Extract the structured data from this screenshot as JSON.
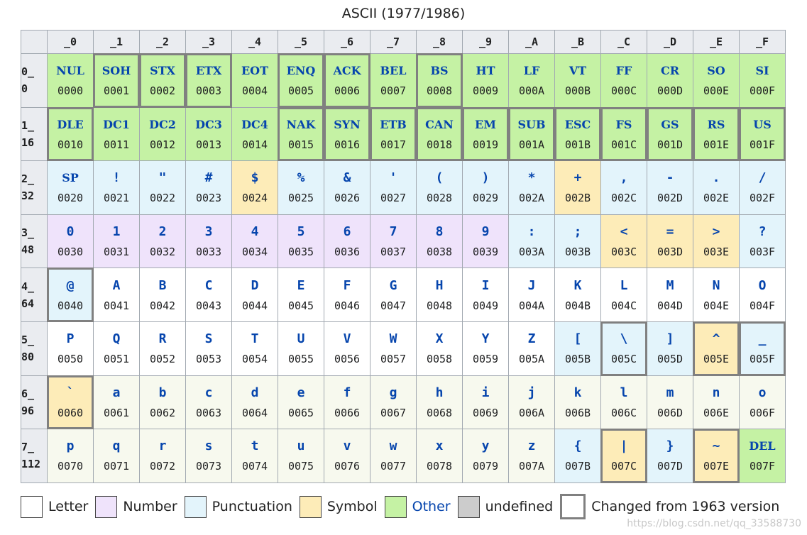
{
  "title": "ASCII (1977/1986)",
  "colors": {
    "letter": "#ffffff",
    "number": "#efe3fb",
    "punctuation": "#e3f4fb",
    "symbol": "#fdecb8",
    "other": "#c5f2a4",
    "undefined": "#cccccc",
    "lowercase_tint": "#f7f9ee",
    "changed_border": "#808080"
  },
  "column_headers": [
    "_0",
    "_1",
    "_2",
    "_3",
    "_4",
    "_5",
    "_6",
    "_7",
    "_8",
    "_9",
    "_A",
    "_B",
    "_C",
    "_D",
    "_E",
    "_F"
  ],
  "rows": [
    {
      "hdr": "0_",
      "dec": "0",
      "cells": [
        {
          "ch": "NUL",
          "code": "0000",
          "cat": "other",
          "changed": false
        },
        {
          "ch": "SOH",
          "code": "0001",
          "cat": "other",
          "changed": true
        },
        {
          "ch": "STX",
          "code": "0002",
          "cat": "other",
          "changed": true
        },
        {
          "ch": "ETX",
          "code": "0003",
          "cat": "other",
          "changed": true
        },
        {
          "ch": "EOT",
          "code": "0004",
          "cat": "other",
          "changed": false
        },
        {
          "ch": "ENQ",
          "code": "0005",
          "cat": "other",
          "changed": true
        },
        {
          "ch": "ACK",
          "code": "0006",
          "cat": "other",
          "changed": true
        },
        {
          "ch": "BEL",
          "code": "0007",
          "cat": "other",
          "changed": false
        },
        {
          "ch": "BS",
          "code": "0008",
          "cat": "other",
          "changed": true
        },
        {
          "ch": "HT",
          "code": "0009",
          "cat": "other",
          "changed": false
        },
        {
          "ch": "LF",
          "code": "000A",
          "cat": "other",
          "changed": false
        },
        {
          "ch": "VT",
          "code": "000B",
          "cat": "other",
          "changed": false
        },
        {
          "ch": "FF",
          "code": "000C",
          "cat": "other",
          "changed": false
        },
        {
          "ch": "CR",
          "code": "000D",
          "cat": "other",
          "changed": false
        },
        {
          "ch": "SO",
          "code": "000E",
          "cat": "other",
          "changed": false
        },
        {
          "ch": "SI",
          "code": "000F",
          "cat": "other",
          "changed": false
        }
      ]
    },
    {
      "hdr": "1_",
      "dec": "16",
      "cells": [
        {
          "ch": "DLE",
          "code": "0010",
          "cat": "other",
          "changed": true
        },
        {
          "ch": "DC1",
          "code": "0011",
          "cat": "other",
          "changed": false
        },
        {
          "ch": "DC2",
          "code": "0012",
          "cat": "other",
          "changed": false
        },
        {
          "ch": "DC3",
          "code": "0013",
          "cat": "other",
          "changed": false
        },
        {
          "ch": "DC4",
          "code": "0014",
          "cat": "other",
          "changed": false
        },
        {
          "ch": "NAK",
          "code": "0015",
          "cat": "other",
          "changed": true
        },
        {
          "ch": "SYN",
          "code": "0016",
          "cat": "other",
          "changed": true
        },
        {
          "ch": "ETB",
          "code": "0017",
          "cat": "other",
          "changed": true
        },
        {
          "ch": "CAN",
          "code": "0018",
          "cat": "other",
          "changed": true
        },
        {
          "ch": "EM",
          "code": "0019",
          "cat": "other",
          "changed": true
        },
        {
          "ch": "SUB",
          "code": "001A",
          "cat": "other",
          "changed": true
        },
        {
          "ch": "ESC",
          "code": "001B",
          "cat": "other",
          "changed": true
        },
        {
          "ch": "FS",
          "code": "001C",
          "cat": "other",
          "changed": true
        },
        {
          "ch": "GS",
          "code": "001D",
          "cat": "other",
          "changed": true
        },
        {
          "ch": "RS",
          "code": "001E",
          "cat": "other",
          "changed": true
        },
        {
          "ch": "US",
          "code": "001F",
          "cat": "other",
          "changed": true
        }
      ]
    },
    {
      "hdr": "2_",
      "dec": "32",
      "cells": [
        {
          "ch": "SP",
          "code": "0020",
          "cat": "punctuation",
          "changed": false
        },
        {
          "ch": "!",
          "code": "0021",
          "cat": "punctuation",
          "changed": false
        },
        {
          "ch": "\"",
          "code": "0022",
          "cat": "punctuation",
          "changed": false
        },
        {
          "ch": "#",
          "code": "0023",
          "cat": "punctuation",
          "changed": false
        },
        {
          "ch": "$",
          "code": "0024",
          "cat": "symbol",
          "changed": false
        },
        {
          "ch": "%",
          "code": "0025",
          "cat": "punctuation",
          "changed": false
        },
        {
          "ch": "&",
          "code": "0026",
          "cat": "punctuation",
          "changed": false
        },
        {
          "ch": "'",
          "code": "0027",
          "cat": "punctuation",
          "changed": false
        },
        {
          "ch": "(",
          "code": "0028",
          "cat": "punctuation",
          "changed": false
        },
        {
          "ch": ")",
          "code": "0029",
          "cat": "punctuation",
          "changed": false
        },
        {
          "ch": "*",
          "code": "002A",
          "cat": "punctuation",
          "changed": false
        },
        {
          "ch": "+",
          "code": "002B",
          "cat": "symbol",
          "changed": false
        },
        {
          "ch": ",",
          "code": "002C",
          "cat": "punctuation",
          "changed": false
        },
        {
          "ch": "-",
          "code": "002D",
          "cat": "punctuation",
          "changed": false
        },
        {
          "ch": ".",
          "code": "002E",
          "cat": "punctuation",
          "changed": false
        },
        {
          "ch": "/",
          "code": "002F",
          "cat": "punctuation",
          "changed": false
        }
      ]
    },
    {
      "hdr": "3_",
      "dec": "48",
      "cells": [
        {
          "ch": "0",
          "code": "0030",
          "cat": "number",
          "changed": false
        },
        {
          "ch": "1",
          "code": "0031",
          "cat": "number",
          "changed": false
        },
        {
          "ch": "2",
          "code": "0032",
          "cat": "number",
          "changed": false
        },
        {
          "ch": "3",
          "code": "0033",
          "cat": "number",
          "changed": false
        },
        {
          "ch": "4",
          "code": "0034",
          "cat": "number",
          "changed": false
        },
        {
          "ch": "5",
          "code": "0035",
          "cat": "number",
          "changed": false
        },
        {
          "ch": "6",
          "code": "0036",
          "cat": "number",
          "changed": false
        },
        {
          "ch": "7",
          "code": "0037",
          "cat": "number",
          "changed": false
        },
        {
          "ch": "8",
          "code": "0038",
          "cat": "number",
          "changed": false
        },
        {
          "ch": "9",
          "code": "0039",
          "cat": "number",
          "changed": false
        },
        {
          "ch": ":",
          "code": "003A",
          "cat": "punctuation",
          "changed": false
        },
        {
          "ch": ";",
          "code": "003B",
          "cat": "punctuation",
          "changed": false
        },
        {
          "ch": "<",
          "code": "003C",
          "cat": "symbol",
          "changed": false
        },
        {
          "ch": "=",
          "code": "003D",
          "cat": "symbol",
          "changed": false
        },
        {
          "ch": ">",
          "code": "003E",
          "cat": "symbol",
          "changed": false
        },
        {
          "ch": "?",
          "code": "003F",
          "cat": "punctuation",
          "changed": false
        }
      ]
    },
    {
      "hdr": "4_",
      "dec": "64",
      "cells": [
        {
          "ch": "@",
          "code": "0040",
          "cat": "punctuation",
          "changed": true
        },
        {
          "ch": "A",
          "code": "0041",
          "cat": "letter",
          "changed": false
        },
        {
          "ch": "B",
          "code": "0042",
          "cat": "letter",
          "changed": false
        },
        {
          "ch": "C",
          "code": "0043",
          "cat": "letter",
          "changed": false
        },
        {
          "ch": "D",
          "code": "0044",
          "cat": "letter",
          "changed": false
        },
        {
          "ch": "E",
          "code": "0045",
          "cat": "letter",
          "changed": false
        },
        {
          "ch": "F",
          "code": "0046",
          "cat": "letter",
          "changed": false
        },
        {
          "ch": "G",
          "code": "0047",
          "cat": "letter",
          "changed": false
        },
        {
          "ch": "H",
          "code": "0048",
          "cat": "letter",
          "changed": false
        },
        {
          "ch": "I",
          "code": "0049",
          "cat": "letter",
          "changed": false
        },
        {
          "ch": "J",
          "code": "004A",
          "cat": "letter",
          "changed": false
        },
        {
          "ch": "K",
          "code": "004B",
          "cat": "letter",
          "changed": false
        },
        {
          "ch": "L",
          "code": "004C",
          "cat": "letter",
          "changed": false
        },
        {
          "ch": "M",
          "code": "004D",
          "cat": "letter",
          "changed": false
        },
        {
          "ch": "N",
          "code": "004E",
          "cat": "letter",
          "changed": false
        },
        {
          "ch": "O",
          "code": "004F",
          "cat": "letter",
          "changed": false
        }
      ]
    },
    {
      "hdr": "5_",
      "dec": "80",
      "cells": [
        {
          "ch": "P",
          "code": "0050",
          "cat": "letter",
          "changed": false
        },
        {
          "ch": "Q",
          "code": "0051",
          "cat": "letter",
          "changed": false
        },
        {
          "ch": "R",
          "code": "0052",
          "cat": "letter",
          "changed": false
        },
        {
          "ch": "S",
          "code": "0053",
          "cat": "letter",
          "changed": false
        },
        {
          "ch": "T",
          "code": "0054",
          "cat": "letter",
          "changed": false
        },
        {
          "ch": "U",
          "code": "0055",
          "cat": "letter",
          "changed": false
        },
        {
          "ch": "V",
          "code": "0056",
          "cat": "letter",
          "changed": false
        },
        {
          "ch": "W",
          "code": "0057",
          "cat": "letter",
          "changed": false
        },
        {
          "ch": "X",
          "code": "0058",
          "cat": "letter",
          "changed": false
        },
        {
          "ch": "Y",
          "code": "0059",
          "cat": "letter",
          "changed": false
        },
        {
          "ch": "Z",
          "code": "005A",
          "cat": "letter",
          "changed": false
        },
        {
          "ch": "[",
          "code": "005B",
          "cat": "punctuation",
          "changed": false
        },
        {
          "ch": "\\",
          "code": "005C",
          "cat": "punctuation",
          "changed": true
        },
        {
          "ch": "]",
          "code": "005D",
          "cat": "punctuation",
          "changed": false
        },
        {
          "ch": "^",
          "code": "005E",
          "cat": "symbol",
          "changed": true
        },
        {
          "ch": "_",
          "code": "005F",
          "cat": "punctuation",
          "changed": true
        }
      ]
    },
    {
      "hdr": "6_",
      "dec": "96",
      "cells": [
        {
          "ch": "`",
          "code": "0060",
          "cat": "symbol",
          "changed": true
        },
        {
          "ch": "a",
          "code": "0061",
          "cat": "lower",
          "changed": false
        },
        {
          "ch": "b",
          "code": "0062",
          "cat": "lower",
          "changed": false
        },
        {
          "ch": "c",
          "code": "0063",
          "cat": "lower",
          "changed": false
        },
        {
          "ch": "d",
          "code": "0064",
          "cat": "lower",
          "changed": false
        },
        {
          "ch": "e",
          "code": "0065",
          "cat": "lower",
          "changed": false
        },
        {
          "ch": "f",
          "code": "0066",
          "cat": "lower",
          "changed": false
        },
        {
          "ch": "g",
          "code": "0067",
          "cat": "lower",
          "changed": false
        },
        {
          "ch": "h",
          "code": "0068",
          "cat": "lower",
          "changed": false
        },
        {
          "ch": "i",
          "code": "0069",
          "cat": "lower",
          "changed": false
        },
        {
          "ch": "j",
          "code": "006A",
          "cat": "lower",
          "changed": false
        },
        {
          "ch": "k",
          "code": "006B",
          "cat": "lower",
          "changed": false
        },
        {
          "ch": "l",
          "code": "006C",
          "cat": "lower",
          "changed": false
        },
        {
          "ch": "m",
          "code": "006D",
          "cat": "lower",
          "changed": false
        },
        {
          "ch": "n",
          "code": "006E",
          "cat": "lower",
          "changed": false
        },
        {
          "ch": "o",
          "code": "006F",
          "cat": "lower",
          "changed": false
        }
      ]
    },
    {
      "hdr": "7_",
      "dec": "112",
      "cells": [
        {
          "ch": "p",
          "code": "0070",
          "cat": "lower",
          "changed": false
        },
        {
          "ch": "q",
          "code": "0071",
          "cat": "lower",
          "changed": false
        },
        {
          "ch": "r",
          "code": "0072",
          "cat": "lower",
          "changed": false
        },
        {
          "ch": "s",
          "code": "0073",
          "cat": "lower",
          "changed": false
        },
        {
          "ch": "t",
          "code": "0074",
          "cat": "lower",
          "changed": false
        },
        {
          "ch": "u",
          "code": "0075",
          "cat": "lower",
          "changed": false
        },
        {
          "ch": "v",
          "code": "0076",
          "cat": "lower",
          "changed": false
        },
        {
          "ch": "w",
          "code": "0077",
          "cat": "lower",
          "changed": false
        },
        {
          "ch": "x",
          "code": "0078",
          "cat": "lower",
          "changed": false
        },
        {
          "ch": "y",
          "code": "0079",
          "cat": "lower",
          "changed": false
        },
        {
          "ch": "z",
          "code": "007A",
          "cat": "lower",
          "changed": false
        },
        {
          "ch": "{",
          "code": "007B",
          "cat": "punctuation",
          "changed": false
        },
        {
          "ch": "|",
          "code": "007C",
          "cat": "symbol",
          "changed": true
        },
        {
          "ch": "}",
          "code": "007D",
          "cat": "punctuation",
          "changed": false
        },
        {
          "ch": "~",
          "code": "007E",
          "cat": "symbol",
          "changed": true
        },
        {
          "ch": "DEL",
          "code": "007F",
          "cat": "other",
          "changed": false
        }
      ]
    }
  ],
  "legend": [
    {
      "key": "letter",
      "label": "Letter",
      "color": "#ffffff",
      "link": false
    },
    {
      "key": "number",
      "label": "Number",
      "color": "#efe3fb",
      "link": false
    },
    {
      "key": "punctuation",
      "label": "Punctuation",
      "color": "#e3f4fb",
      "link": false
    },
    {
      "key": "symbol",
      "label": "Symbol",
      "color": "#fdecb8",
      "link": false
    },
    {
      "key": "other",
      "label": "Other",
      "color": "#c5f2a4",
      "link": true
    },
    {
      "key": "undefined",
      "label": "undefined",
      "color": "#cccccc",
      "link": false
    },
    {
      "key": "changed",
      "label": "Changed from 1963 version",
      "color": "#ffffff",
      "link": false
    }
  ],
  "watermark": "https://blog.csdn.net/qq_33588730"
}
